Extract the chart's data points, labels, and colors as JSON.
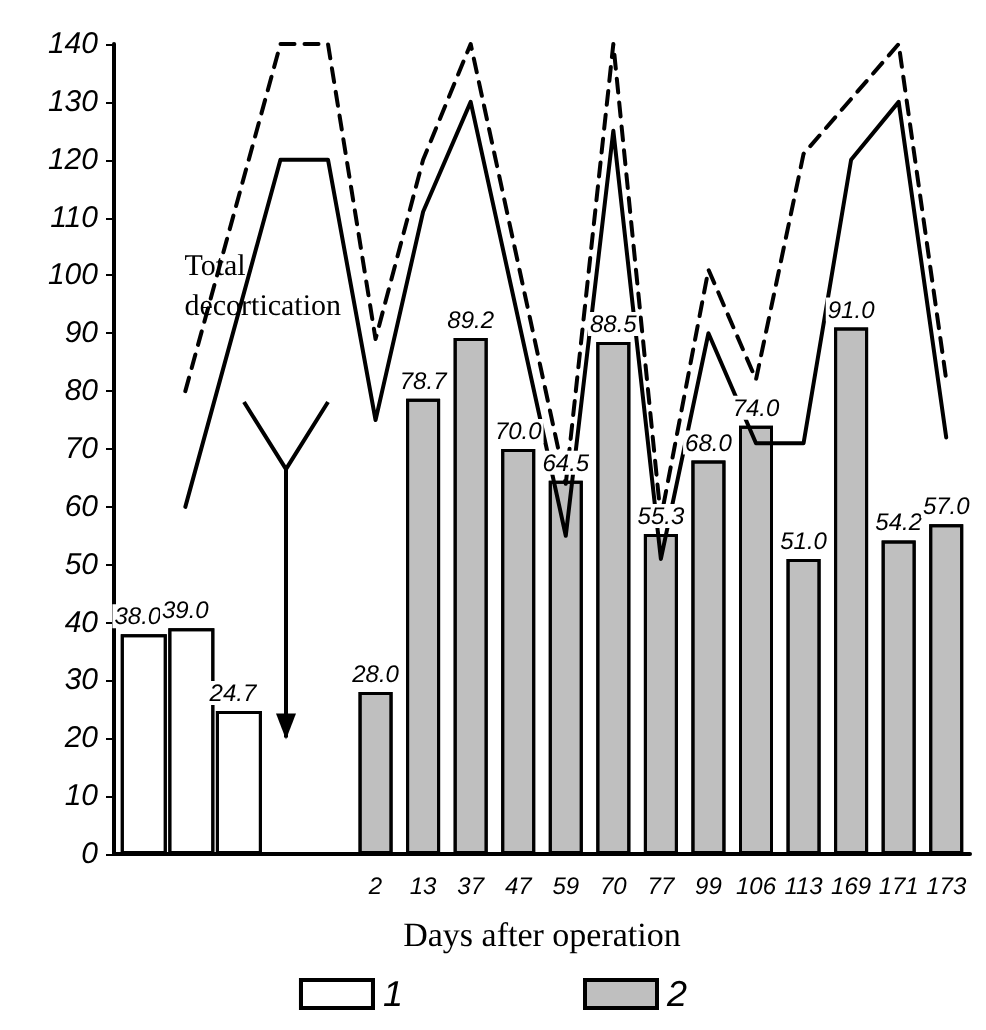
{
  "chart_data": {
    "type": "bar",
    "xlabel": "Days after operation",
    "categories": [
      null,
      null,
      null,
      null,
      null,
      "2",
      "13",
      "37",
      "47",
      "59",
      "70",
      "77",
      "99",
      "106",
      "113",
      "169",
      "171",
      "173"
    ],
    "series": [
      {
        "name": "1",
        "color": "#ffffff",
        "values": [
          38.0,
          39.0,
          24.7,
          null,
          null,
          null,
          null,
          null,
          null,
          null,
          null,
          null,
          null,
          null,
          null,
          null,
          null,
          null
        ],
        "value_labels": [
          "38.0",
          "39.0",
          "24.7",
          null,
          null,
          null,
          null,
          null,
          null,
          null,
          null,
          null,
          null,
          null,
          null,
          null,
          null,
          null
        ]
      },
      {
        "name": "2",
        "color": "#bfbfbf",
        "values": [
          null,
          null,
          null,
          null,
          null,
          28.0,
          78.7,
          89.2,
          70.0,
          64.5,
          88.5,
          55.3,
          68.0,
          74.0,
          51.0,
          91.0,
          54.2,
          57.0
        ],
        "value_labels": [
          null,
          null,
          null,
          null,
          null,
          "28.0",
          "78.7",
          "89.2",
          "70.0",
          "64.5",
          "88.5",
          "55.3",
          "68.0",
          "74.0",
          "51.0",
          "91.0",
          "54.2",
          "57.0"
        ]
      },
      {
        "type": "line",
        "color": "#000000",
        "line_style": "solid",
        "values": [
          null,
          60,
          null,
          120,
          120,
          75,
          111,
          130,
          null,
          55,
          125,
          51,
          90,
          71,
          71,
          120,
          130,
          72
        ]
      },
      {
        "type": "line",
        "color": "#000000",
        "line_style": "dashed",
        "values": [
          null,
          80,
          null,
          140,
          140,
          89,
          120,
          140,
          null,
          64,
          140,
          58,
          101,
          82,
          121,
          null,
          140,
          82
        ]
      }
    ],
    "ylim": [
      0,
      140
    ],
    "yticks": [
      0,
      10,
      20,
      30,
      40,
      50,
      60,
      70,
      80,
      90,
      100,
      110,
      120,
      130,
      140
    ],
    "grid": false,
    "legend": "bottom",
    "marker": "none",
    "annotations": [
      {
        "text": "Total decortication"
      }
    ]
  }
}
